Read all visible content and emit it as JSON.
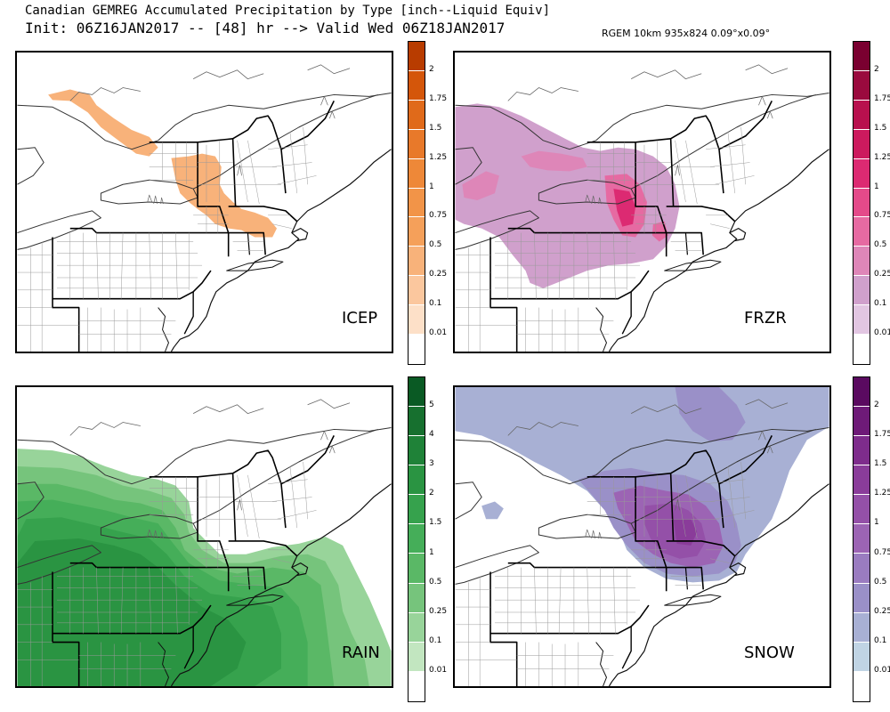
{
  "header": {
    "title": "Canadian GEMREG Accumulated Precipitation by Type [inch--Liquid Equiv]",
    "subtitle": "Init: 06Z16JAN2017 -- [48] hr --> Valid Wed 06Z18JAN2017",
    "model_info": "RGEM 10km 935x824 0.09°x0.09°"
  },
  "panels": {
    "icep": {
      "label": "ICEP"
    },
    "frzr": {
      "label": "FRZR"
    },
    "rain": {
      "label": "RAIN"
    },
    "snow": {
      "label": "SNOW"
    }
  },
  "colorbars": {
    "icep": {
      "ticks": [
        "2",
        "1.75",
        "1.5",
        "1.25",
        "1",
        "0.75",
        "0.5",
        "0.25",
        "0.1",
        "0.01"
      ],
      "colors": [
        "#b83c00",
        "#d4560a",
        "#e06a1a",
        "#e8792a",
        "#ee8838",
        "#f29448",
        "#f5a05a",
        "#f8b27a",
        "#fbc79e",
        "#fde0c8",
        "#ffffff"
      ]
    },
    "frzr": {
      "ticks": [
        "2",
        "1.75",
        "1.5",
        "1.25",
        "1",
        "0.75",
        "0.5",
        "0.25",
        "0.1",
        "0.01"
      ],
      "colors": [
        "#7a0030",
        "#9a0a3e",
        "#b8104e",
        "#cc1a5e",
        "#dc2a72",
        "#e44a8a",
        "#e66aa2",
        "#de86b8",
        "#d0a0cc",
        "#e2c6e2",
        "#ffffff"
      ]
    },
    "rain": {
      "ticks": [
        "5",
        "4",
        "3",
        "2",
        "1.5",
        "1",
        "0.5",
        "0.25",
        "0.1",
        "0.01"
      ],
      "colors": [
        "#0a5a24",
        "#17702f",
        "#1f8238",
        "#2a9442",
        "#36a24d",
        "#45ae59",
        "#5ab866",
        "#76c47c",
        "#98d49a",
        "#c2e6c0",
        "#ffffff"
      ]
    },
    "snow": {
      "ticks": [
        "2",
        "1.75",
        "1.5",
        "1.25",
        "1",
        "0.75",
        "0.5",
        "0.25",
        "0.1",
        "0.01"
      ],
      "colors": [
        "#5a0a60",
        "#6e1a78",
        "#7e2c8c",
        "#8a3c9a",
        "#9450a8",
        "#9c64b4",
        "#9a7cc0",
        "#9a90c8",
        "#a8b0d4",
        "#c0d4e4",
        "#ffffff"
      ]
    }
  }
}
